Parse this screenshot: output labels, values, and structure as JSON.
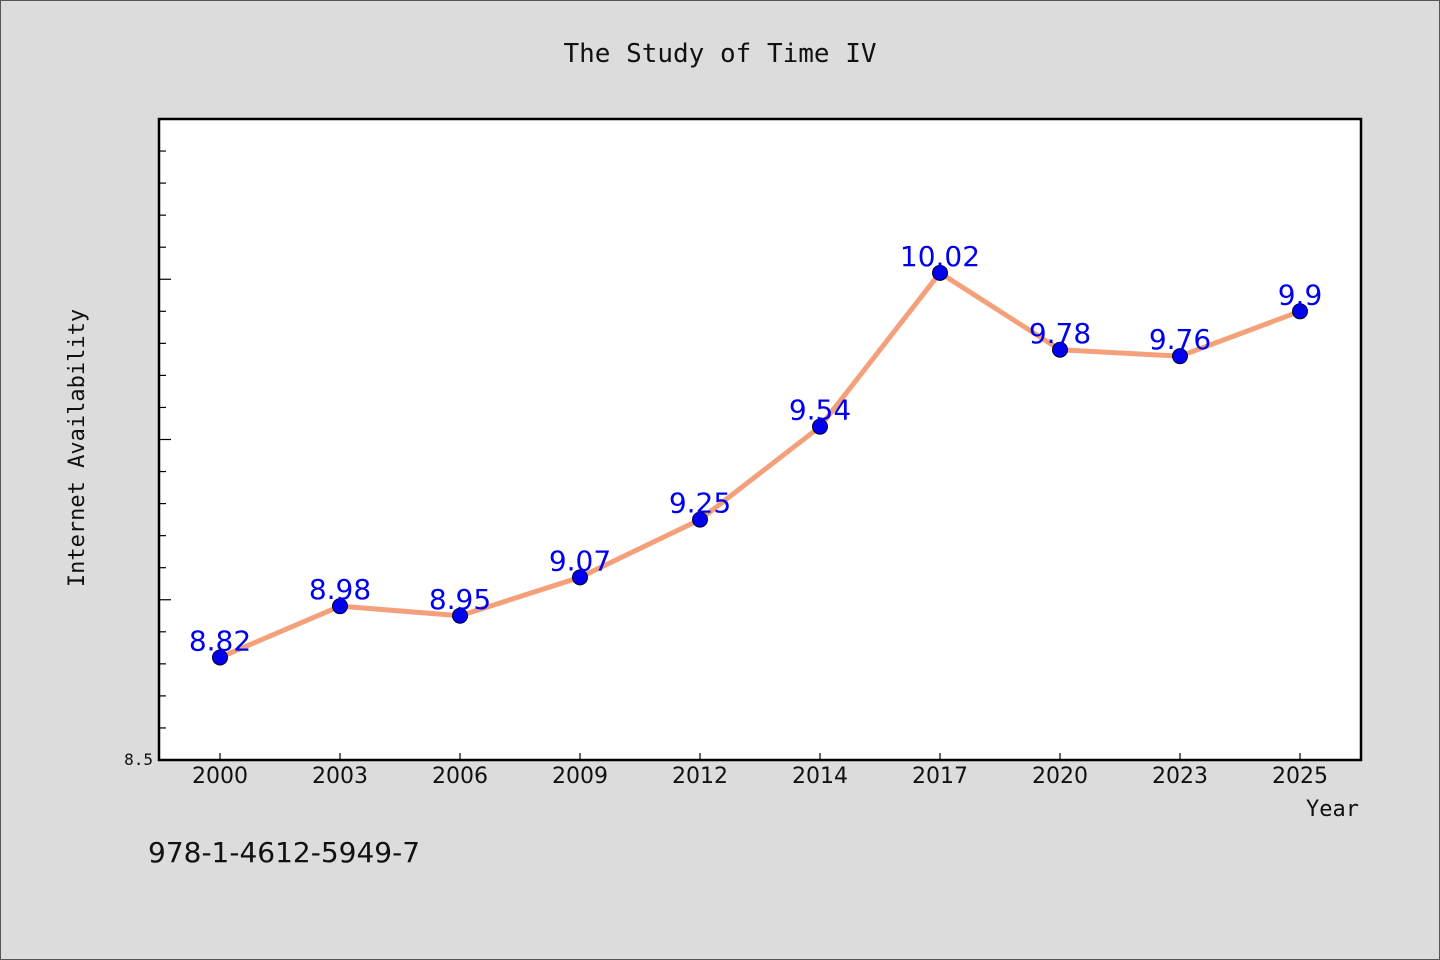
{
  "chart_data": {
    "type": "line",
    "title": "The Study of Time IV",
    "xlabel": "Year",
    "ylabel": "Internet Availability",
    "categories": [
      "2000",
      "2003",
      "2006",
      "2009",
      "2012",
      "2014",
      "2017",
      "2020",
      "2023",
      "2025"
    ],
    "series": [
      {
        "values": [
          8.82,
          8.98,
          8.95,
          9.07,
          9.25,
          9.54,
          10.02,
          9.78,
          9.76,
          9.9
        ]
      }
    ],
    "data_labels": [
      "8.82",
      "8.98",
      "8.95",
      "9.07",
      "9.25",
      "9.54",
      "10.02",
      "9.78",
      "9.76",
      "9.9"
    ],
    "ylim": [
      8.5,
      10.5
    ],
    "yticks": [
      8.5
    ],
    "ytick_labels": [
      "8.5"
    ],
    "grid": false,
    "line_color": "#f4a07a",
    "marker_color": "#0000ee",
    "label_color": "#0000ee"
  },
  "footnote": "978-1-4612-5949-7"
}
